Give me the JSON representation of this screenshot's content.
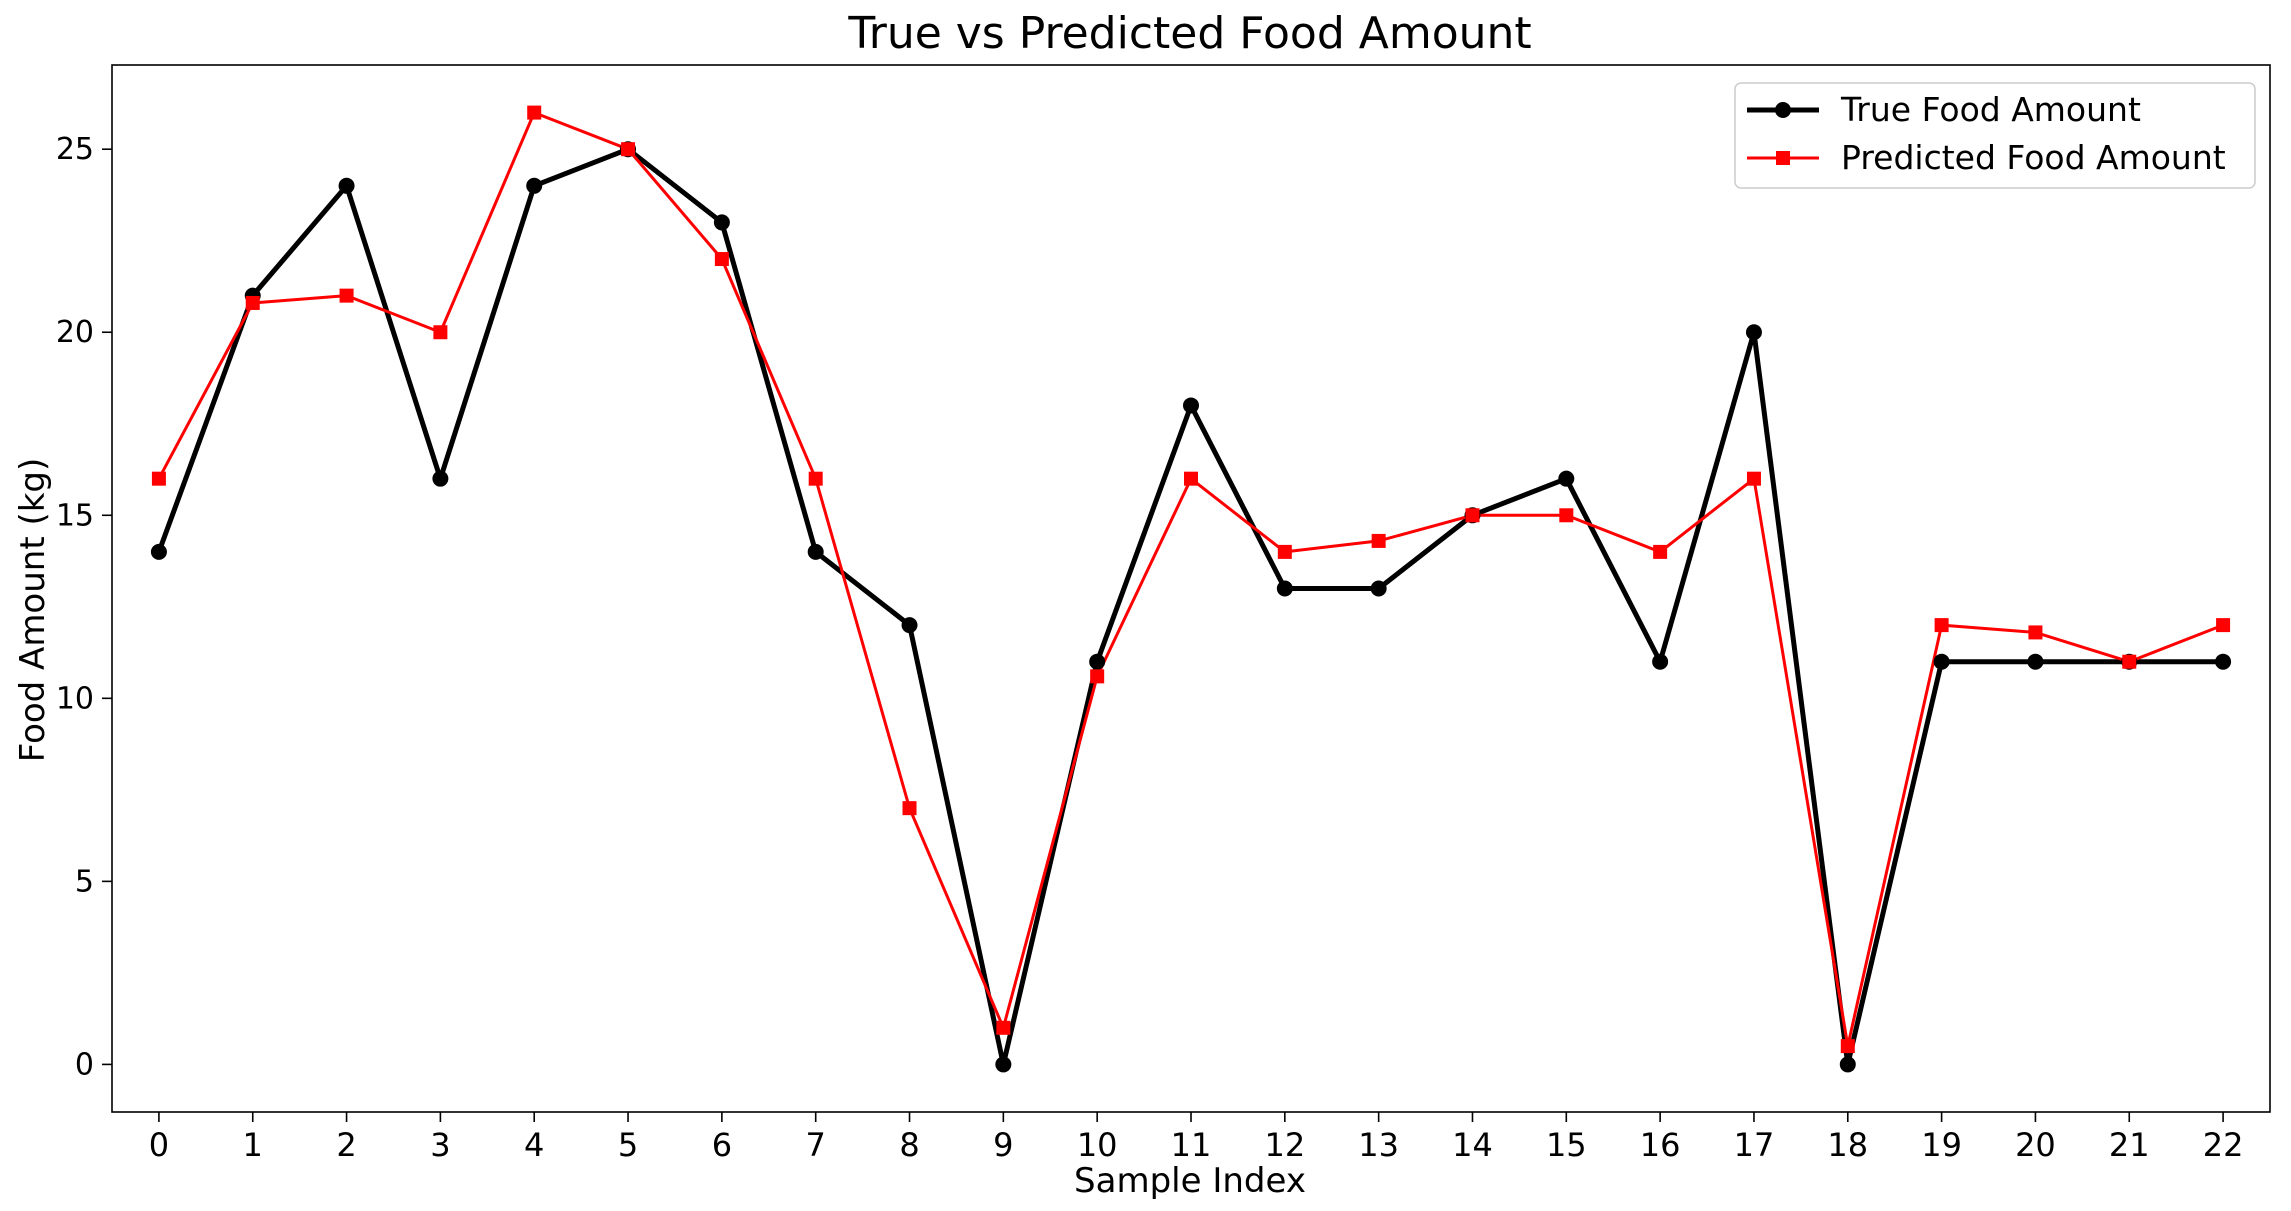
{
  "chart_data": {
    "type": "line",
    "title": "True vs Predicted Food Amount",
    "xlabel": "Sample Index",
    "ylabel": "Food Amount (kg)",
    "x": [
      0,
      1,
      2,
      3,
      4,
      5,
      6,
      7,
      8,
      9,
      10,
      11,
      12,
      13,
      14,
      15,
      16,
      17,
      18,
      19,
      20,
      21,
      22
    ],
    "xticks": [
      "0",
      "1",
      "2",
      "3",
      "4",
      "5",
      "6",
      "7",
      "8",
      "9",
      "10",
      "11",
      "12",
      "13",
      "14",
      "15",
      "16",
      "17",
      "18",
      "19",
      "20",
      "21",
      "22"
    ],
    "yticks": [
      "0",
      "5",
      "10",
      "15",
      "20",
      "25"
    ],
    "ylim": [
      -1.3,
      27.3
    ],
    "xlim": [
      -0.5,
      22.5
    ],
    "grid": false,
    "legend_position": "top-right",
    "series": [
      {
        "name": "True Food Amount",
        "color": "#000000",
        "marker": "circle",
        "values": [
          14,
          21,
          24,
          16,
          24,
          25,
          23,
          14,
          12,
          0,
          11,
          18,
          13,
          13,
          15,
          16,
          11,
          20,
          0,
          11,
          11,
          11,
          11
        ]
      },
      {
        "name": "Predicted Food Amount",
        "color": "#ff0000",
        "marker": "square",
        "values": [
          16,
          20.8,
          21,
          20,
          26,
          25,
          22,
          16,
          7,
          1,
          10.6,
          16,
          14,
          14.3,
          15,
          15,
          14,
          16,
          0.5,
          12,
          11.8,
          11,
          12
        ]
      }
    ]
  }
}
